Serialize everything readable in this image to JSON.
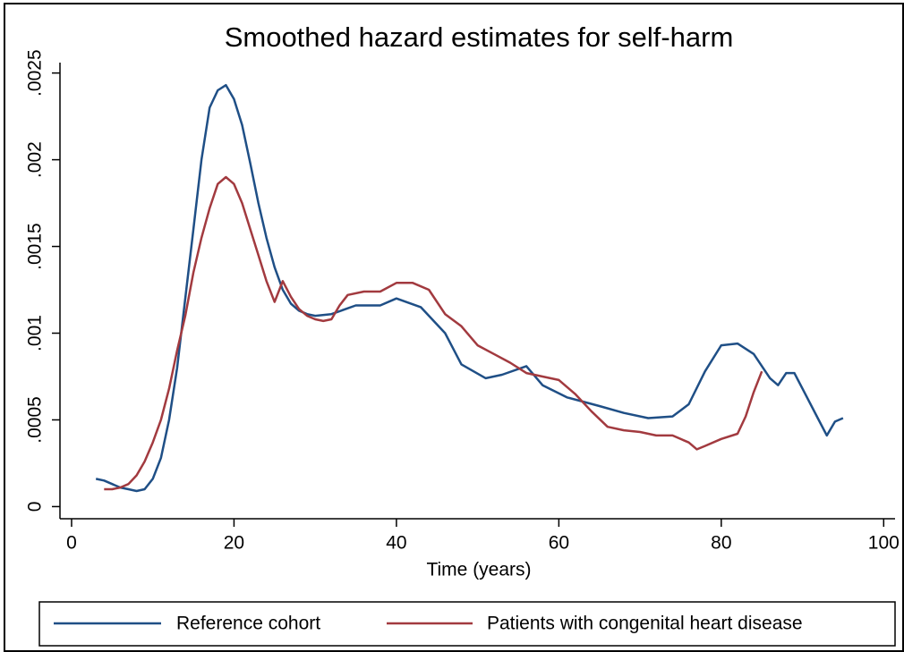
{
  "chart_data": {
    "type": "line",
    "title": "Smoothed hazard estimates for self-harm",
    "xlabel": "Time (years)",
    "xlim": [
      -1.43,
      101.4
    ],
    "xticks": [
      0,
      20,
      40,
      60,
      80,
      100
    ],
    "ylim": [
      -7e-05,
      0.00256
    ],
    "yticks": [
      0,
      {
        "value": 0.0005,
        "label": ".0005"
      },
      {
        "value": 0.001,
        "label": ".001"
      },
      {
        "value": 0.0015,
        "label": ".0015"
      },
      {
        "value": 0.002,
        "label": ".002"
      },
      {
        "value": 0.0025,
        "label": ".0025"
      }
    ],
    "grid": false,
    "legend": "bottom",
    "series": [
      {
        "name": "Reference cohort",
        "color": "#1f4f86",
        "x": [
          3,
          4,
          5,
          6,
          7,
          8,
          9,
          10,
          11,
          12,
          13,
          14,
          15,
          16,
          17,
          18,
          19,
          20,
          21,
          22,
          23,
          24,
          25,
          26,
          27,
          28,
          29,
          30,
          32,
          35,
          38,
          40,
          43,
          46,
          48,
          51,
          53,
          56,
          58,
          61,
          65,
          68,
          71,
          74,
          76,
          78,
          80,
          82,
          84,
          86,
          87,
          88,
          89,
          90,
          92,
          93,
          94,
          95
        ],
        "values": [
          0.00016,
          0.00015,
          0.00013,
          0.00011,
          0.0001,
          9e-05,
          0.0001,
          0.00016,
          0.00028,
          0.0005,
          0.0008,
          0.0012,
          0.0016,
          0.002,
          0.0023,
          0.0024,
          0.00243,
          0.00235,
          0.0022,
          0.00198,
          0.00175,
          0.00155,
          0.00138,
          0.00125,
          0.00117,
          0.00113,
          0.00111,
          0.0011,
          0.00111,
          0.00116,
          0.00116,
          0.0012,
          0.00115,
          0.001,
          0.00082,
          0.00074,
          0.00076,
          0.00081,
          0.0007,
          0.00063,
          0.00058,
          0.00054,
          0.00051,
          0.00052,
          0.00059,
          0.00078,
          0.00093,
          0.00094,
          0.00088,
          0.00074,
          0.0007,
          0.00077,
          0.00077,
          0.00068,
          0.0005,
          0.00041,
          0.00049,
          0.00051
        ]
      },
      {
        "name": "Patients with congenital heart disease",
        "color": "#a23a3f",
        "x": [
          4,
          5,
          6,
          7,
          8,
          9,
          10,
          11,
          12,
          13,
          14,
          15,
          16,
          17,
          18,
          19,
          20,
          21,
          22,
          23,
          24,
          25,
          26,
          27,
          28,
          29,
          30,
          31,
          32,
          33,
          34,
          36,
          38,
          40,
          42,
          44,
          46,
          48,
          50,
          52,
          54,
          56,
          58,
          60,
          62,
          64,
          66,
          68,
          70,
          72,
          74,
          76,
          77,
          78,
          80,
          82,
          83,
          84,
          85
        ],
        "values": [
          0.0001,
          0.0001,
          0.00011,
          0.00013,
          0.00018,
          0.00026,
          0.00037,
          0.0005,
          0.00068,
          0.0009,
          0.0011,
          0.00135,
          0.00155,
          0.00172,
          0.00186,
          0.0019,
          0.00186,
          0.00175,
          0.0016,
          0.00145,
          0.0013,
          0.00118,
          0.0013,
          0.00121,
          0.00114,
          0.0011,
          0.00108,
          0.00107,
          0.00108,
          0.00116,
          0.00122,
          0.00124,
          0.00124,
          0.00129,
          0.00129,
          0.00125,
          0.00111,
          0.00104,
          0.00093,
          0.00088,
          0.00083,
          0.00077,
          0.00075,
          0.00073,
          0.00065,
          0.00055,
          0.00046,
          0.00044,
          0.00043,
          0.00041,
          0.00041,
          0.00037,
          0.00033,
          0.00035,
          0.00039,
          0.00042,
          0.00052,
          0.00066,
          0.00078
        ]
      }
    ]
  }
}
